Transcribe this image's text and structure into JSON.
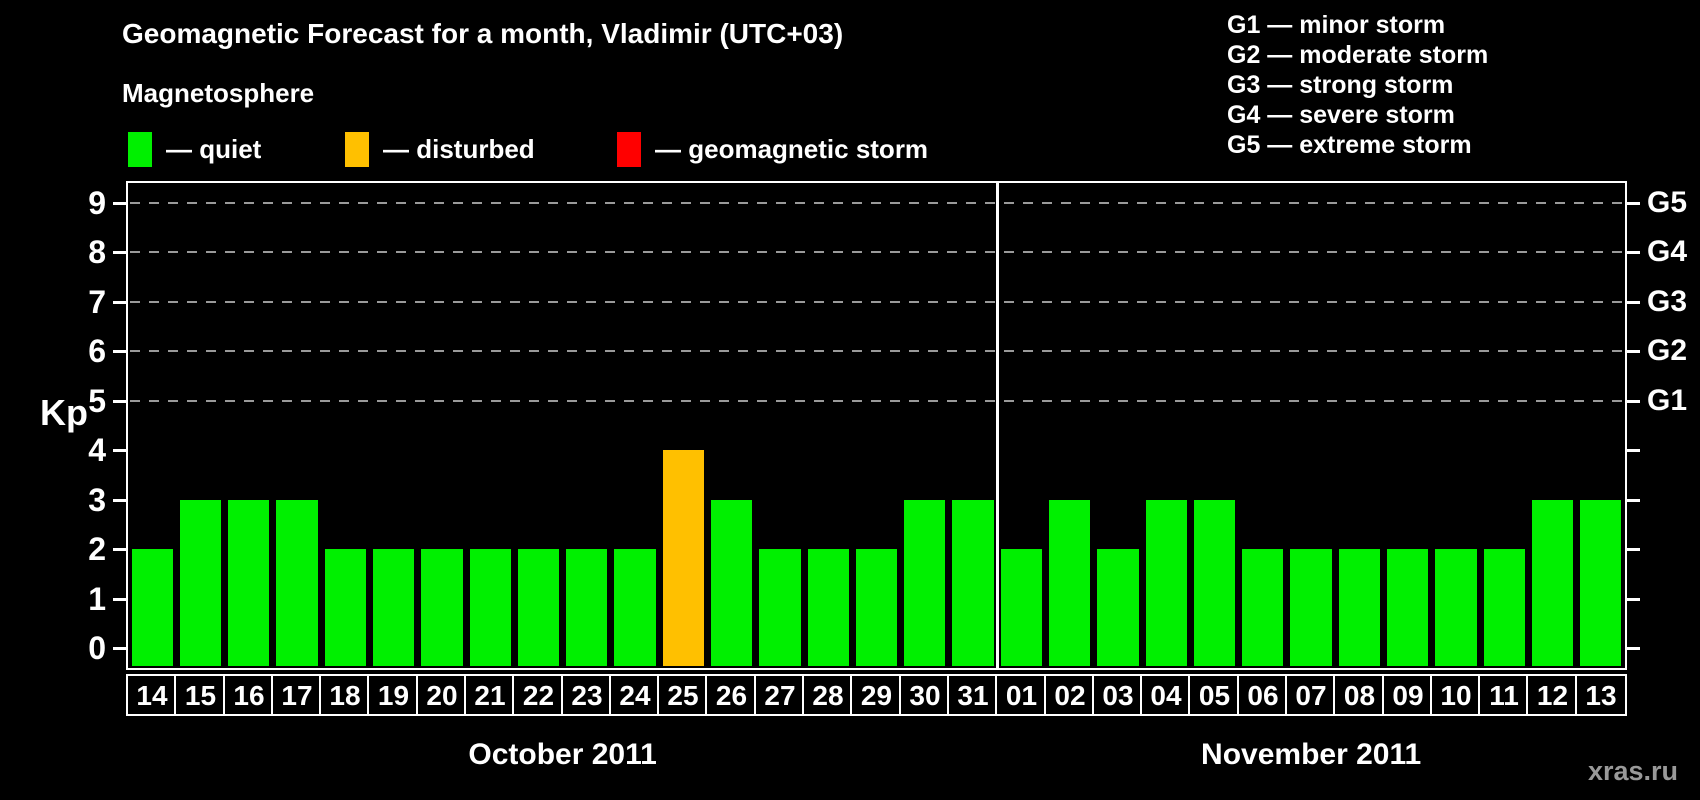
{
  "header": {
    "title": "Geomagnetic Forecast for a month, Vladimir (UTC+03)",
    "subtitle": "Magnetosphere"
  },
  "legend": [
    {
      "name": "quiet",
      "swatch_color": "#00f000",
      "label": "— quiet"
    },
    {
      "name": "disturbed",
      "swatch_color": "#ffc000",
      "label": "— disturbed"
    },
    {
      "name": "storm",
      "swatch_color": "#ff0000",
      "label": "— geomagnetic storm"
    }
  ],
  "storm_scale_legend": [
    "G1 — minor storm",
    "G2 — moderate storm",
    "G3 — strong storm",
    "G4 — severe storm",
    "G5 — extreme storm"
  ],
  "chart_data": {
    "type": "bar",
    "ylabel": "Kp",
    "ylim": [
      -0.4,
      9.4
    ],
    "yticks": [
      0,
      1,
      2,
      3,
      4,
      5,
      6,
      7,
      8,
      9
    ],
    "grid_levels": [
      5,
      6,
      7,
      8,
      9
    ],
    "right_axis_labels": [
      {
        "level": 5,
        "label": "G1"
      },
      {
        "level": 6,
        "label": "G2"
      },
      {
        "level": 7,
        "label": "G3"
      },
      {
        "level": 8,
        "label": "G4"
      },
      {
        "level": 9,
        "label": "G5"
      }
    ],
    "state_colors": {
      "quiet": "#00f000",
      "disturbed": "#ffc000",
      "storm": "#ff0000"
    },
    "months": [
      {
        "label": "October 2011",
        "days": [
          {
            "day": "14",
            "kp": 2,
            "state": "quiet"
          },
          {
            "day": "15",
            "kp": 3,
            "state": "quiet"
          },
          {
            "day": "16",
            "kp": 3,
            "state": "quiet"
          },
          {
            "day": "17",
            "kp": 3,
            "state": "quiet"
          },
          {
            "day": "18",
            "kp": 2,
            "state": "quiet"
          },
          {
            "day": "19",
            "kp": 2,
            "state": "quiet"
          },
          {
            "day": "20",
            "kp": 2,
            "state": "quiet"
          },
          {
            "day": "21",
            "kp": 2,
            "state": "quiet"
          },
          {
            "day": "22",
            "kp": 2,
            "state": "quiet"
          },
          {
            "day": "23",
            "kp": 2,
            "state": "quiet"
          },
          {
            "day": "24",
            "kp": 2,
            "state": "quiet"
          },
          {
            "day": "25",
            "kp": 4,
            "state": "disturbed"
          },
          {
            "day": "26",
            "kp": 3,
            "state": "quiet"
          },
          {
            "day": "27",
            "kp": 2,
            "state": "quiet"
          },
          {
            "day": "28",
            "kp": 2,
            "state": "quiet"
          },
          {
            "day": "29",
            "kp": 2,
            "state": "quiet"
          },
          {
            "day": "30",
            "kp": 3,
            "state": "quiet"
          },
          {
            "day": "31",
            "kp": 3,
            "state": "quiet"
          }
        ]
      },
      {
        "label": "November 2011",
        "days": [
          {
            "day": "01",
            "kp": 2,
            "state": "quiet"
          },
          {
            "day": "02",
            "kp": 3,
            "state": "quiet"
          },
          {
            "day": "03",
            "kp": 2,
            "state": "quiet"
          },
          {
            "day": "04",
            "kp": 3,
            "state": "quiet"
          },
          {
            "day": "05",
            "kp": 3,
            "state": "quiet"
          },
          {
            "day": "06",
            "kp": 2,
            "state": "quiet"
          },
          {
            "day": "07",
            "kp": 2,
            "state": "quiet"
          },
          {
            "day": "08",
            "kp": 2,
            "state": "quiet"
          },
          {
            "day": "09",
            "kp": 2,
            "state": "quiet"
          },
          {
            "day": "10",
            "kp": 2,
            "state": "quiet"
          },
          {
            "day": "11",
            "kp": 2,
            "state": "quiet"
          },
          {
            "day": "12",
            "kp": 3,
            "state": "quiet"
          },
          {
            "day": "13",
            "kp": 3,
            "state": "quiet"
          }
        ]
      }
    ]
  },
  "watermark": "xras.ru"
}
